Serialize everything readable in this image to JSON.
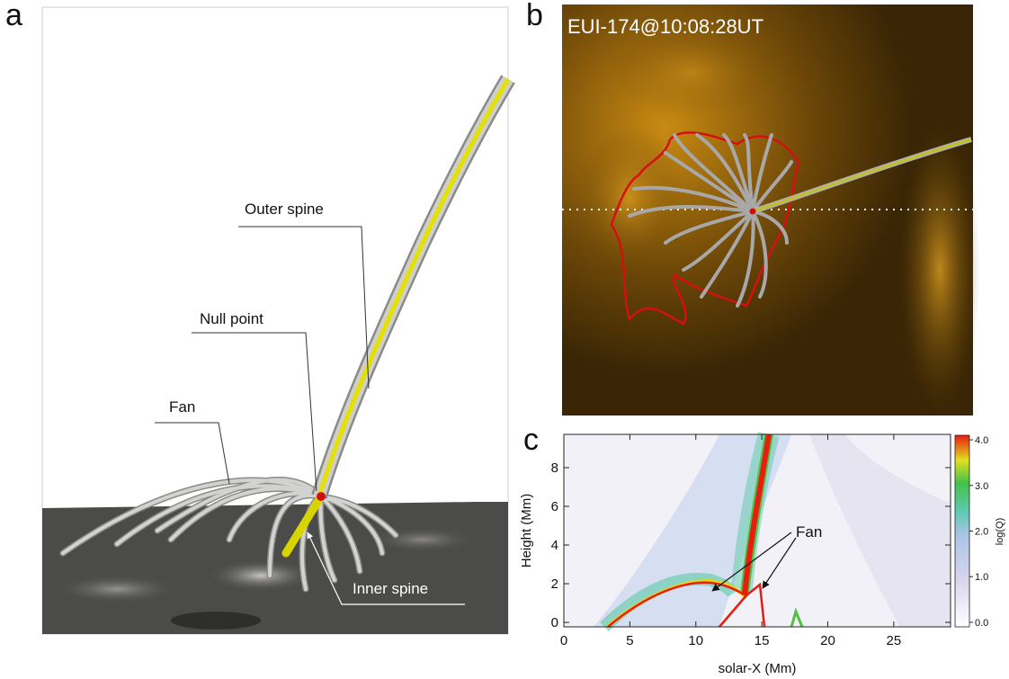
{
  "panel_a": {
    "letter": "a",
    "labels": [
      "Outer spine",
      "Null point",
      "Fan",
      "Inner spine"
    ]
  },
  "panel_b": {
    "letter": "b",
    "title": "EUI-174@10:08:28UT"
  },
  "panel_c": {
    "letter": "c",
    "xlabel": "solar-X (Mm)",
    "ylabel": "Height (Mm)",
    "annotation": "Fan",
    "xlim": [
      0,
      29.3
    ],
    "xticks": [
      0,
      5,
      10,
      15,
      20,
      25
    ],
    "ylim": [
      -0.23,
      9.72
    ],
    "yticks": [
      0,
      2,
      4,
      6,
      8
    ],
    "colorbar": {
      "label": "log(Q)",
      "lim": [
        -0.1,
        4.1
      ],
      "ticks": [
        {
          "value": 0,
          "label": "0.0"
        },
        {
          "value": 1,
          "label": "1.0"
        },
        {
          "value": 2,
          "label": "2.0"
        },
        {
          "value": 3,
          "label": "3.0"
        },
        {
          "value": 4,
          "label": "4.0"
        }
      ]
    }
  }
}
